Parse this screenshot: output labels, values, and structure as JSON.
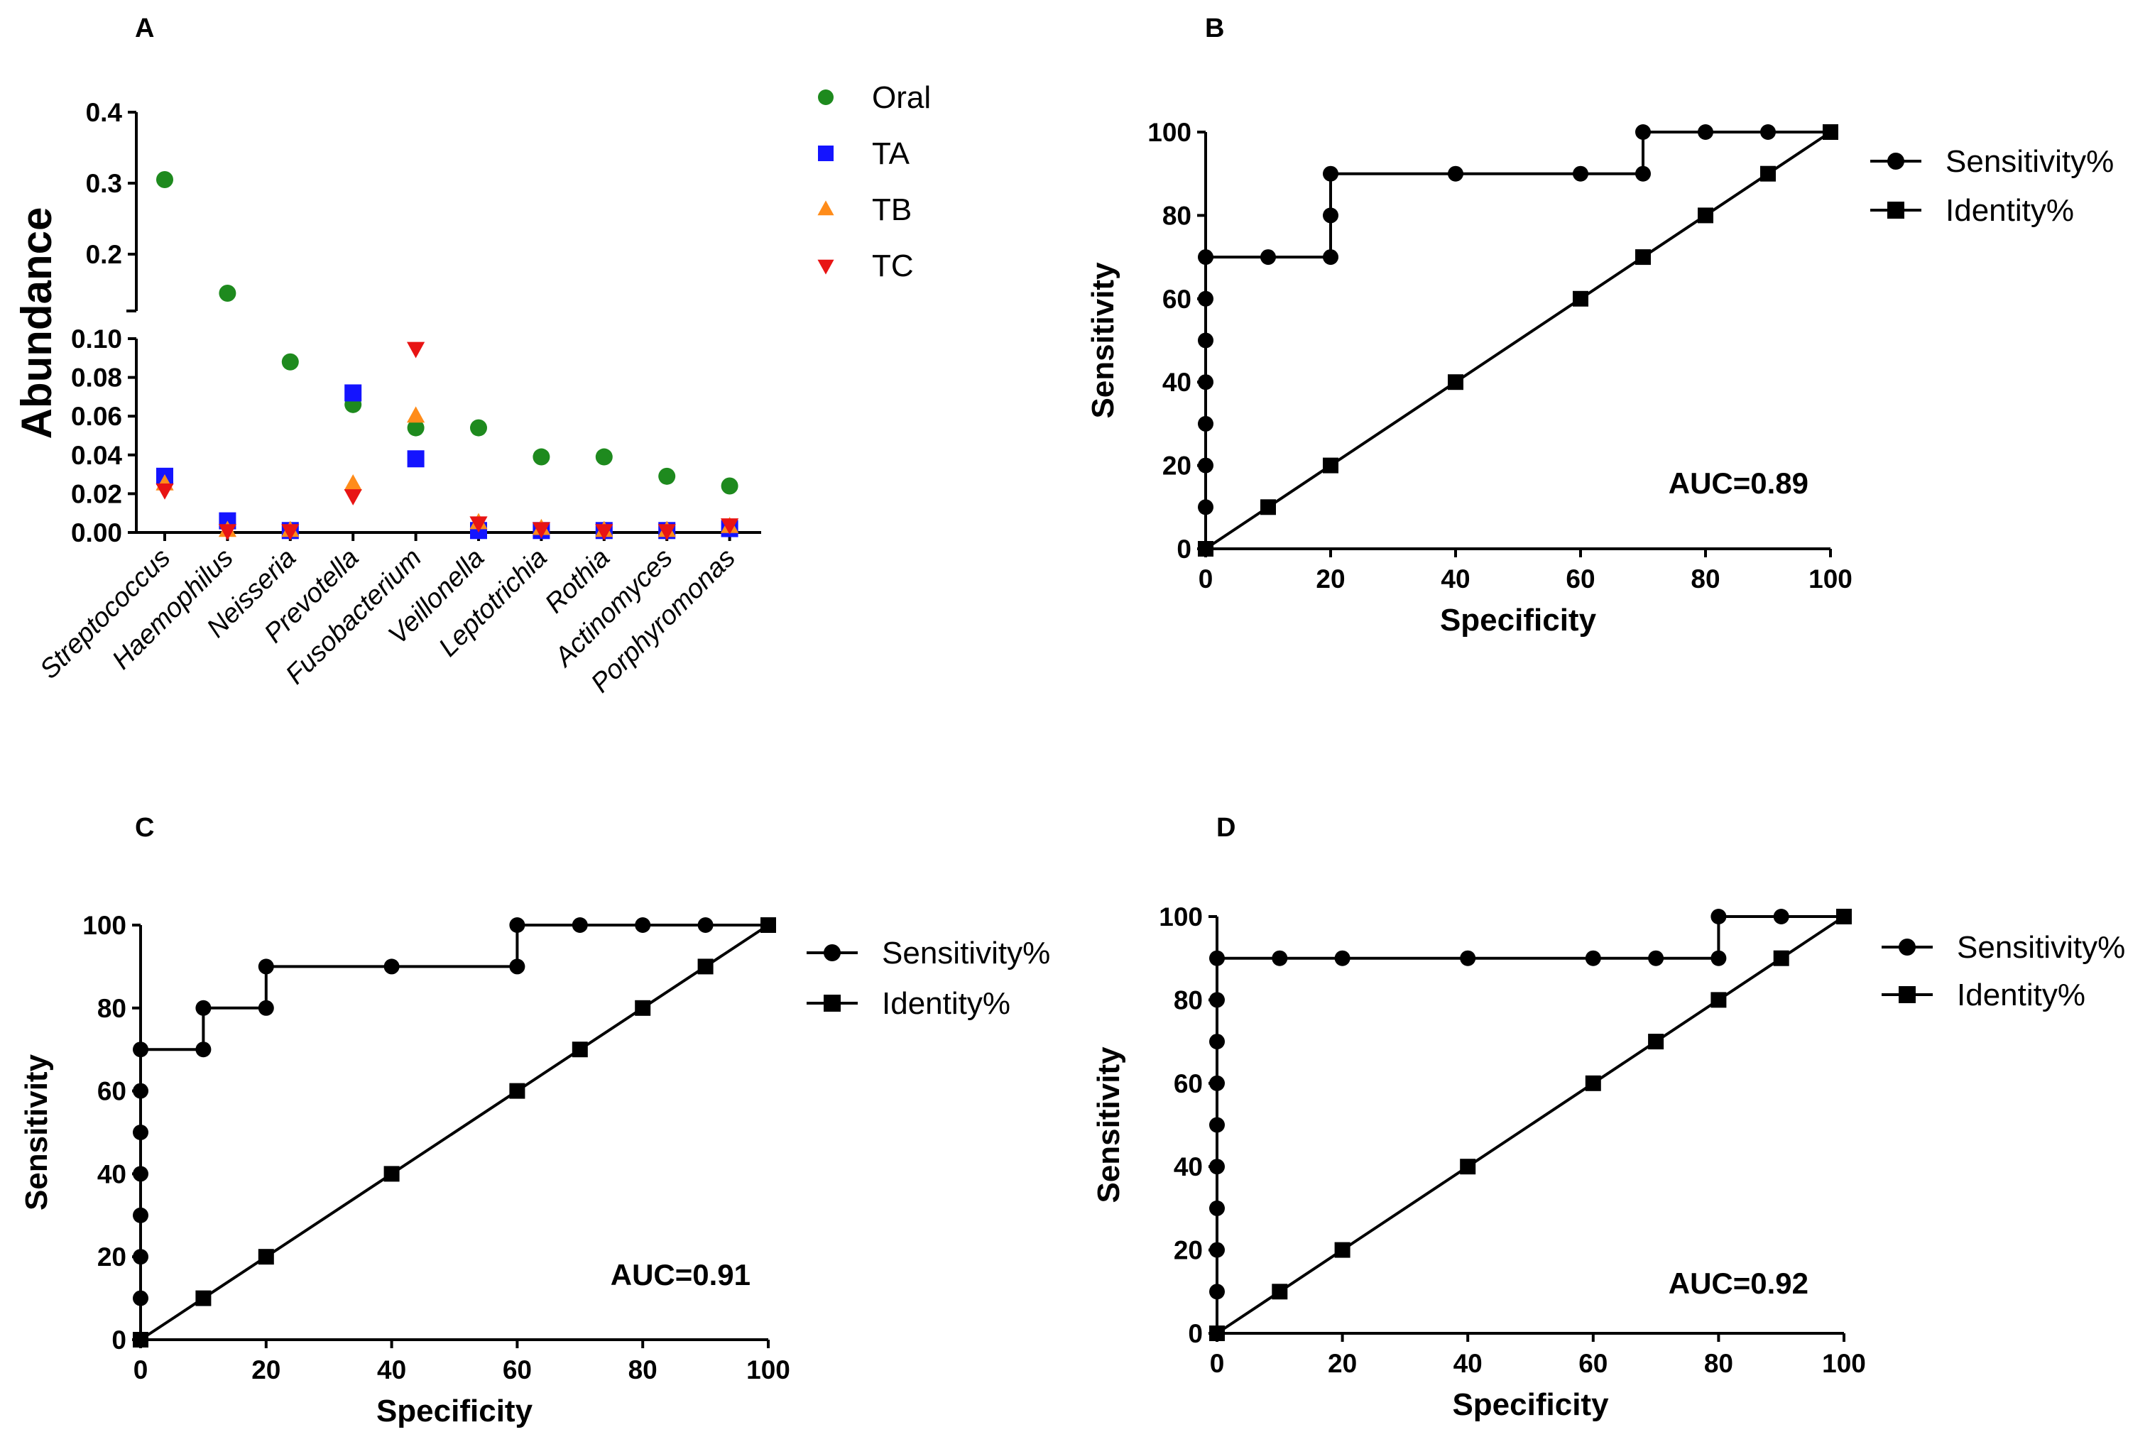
{
  "chart_data": [
    {
      "panel": "A",
      "type": "scatter",
      "ylabel": "Abundance",
      "categories": [
        "Streptococcus",
        "Haemophilus",
        "Neisseria",
        "Prevotella",
        "Fusobacterium",
        "Veillonella",
        "Leptotrichia",
        "Rothia",
        "Actinomyces",
        "Porphyromonas"
      ],
      "series": [
        {
          "name": "Oral",
          "color": "#1e8a1e",
          "marker": "circle",
          "values": [
            0.305,
            0.145,
            0.088,
            0.066,
            0.054,
            0.054,
            0.039,
            0.039,
            0.029,
            0.024
          ]
        },
        {
          "name": "TA",
          "color": "#1414ff",
          "marker": "square",
          "values": [
            0.029,
            0.006,
            0.001,
            0.072,
            0.038,
            0.001,
            0.001,
            0.001,
            0.001,
            0.002
          ]
        },
        {
          "name": "TB",
          "color": "#ff8c1a",
          "marker": "triangle-up",
          "values": [
            0.025,
            0.001,
            0.001,
            0.025,
            0.06,
            0.005,
            0.002,
            0.001,
            0.001,
            0.003
          ]
        },
        {
          "name": "TC",
          "color": "#e81414",
          "marker": "triangle-down",
          "values": [
            0.022,
            0.001,
            0.001,
            0.019,
            0.095,
            0.005,
            0.002,
            0.001,
            0.001,
            0.004
          ]
        }
      ],
      "y_segments": [
        {
          "range": [
            0,
            0.1
          ],
          "ticks": [
            "0.00",
            "0.02",
            "0.04",
            "0.06",
            "0.08",
            "0.10"
          ]
        },
        {
          "range": [
            0.12,
            0.4
          ],
          "ticks": [
            "0.2",
            "0.3",
            "0.4"
          ]
        }
      ]
    },
    {
      "panel": "B",
      "type": "line",
      "xlabel": "Specificity",
      "ylabel": "Sensitivity",
      "xlim": [
        0,
        100
      ],
      "ylim": [
        0,
        100
      ],
      "xticks": [
        "0",
        "20",
        "40",
        "60",
        "80",
        "100"
      ],
      "yticks": [
        "0",
        "20",
        "40",
        "60",
        "80",
        "100"
      ],
      "annotation": "AUC=0.89",
      "series": [
        {
          "name": "Sensitivity%",
          "marker": "circle",
          "x": [
            0,
            0,
            0,
            0,
            0,
            0,
            0,
            0,
            10,
            20,
            20,
            20,
            40,
            60,
            70,
            70,
            80,
            90,
            100
          ],
          "y": [
            0,
            10,
            20,
            30,
            40,
            50,
            60,
            70,
            70,
            70,
            80,
            90,
            90,
            90,
            90,
            100,
            100,
            100,
            100
          ]
        },
        {
          "name": "Identity%",
          "marker": "square",
          "x": [
            0,
            10,
            20,
            40,
            60,
            70,
            80,
            90,
            100
          ],
          "y": [
            0,
            10,
            20,
            40,
            60,
            70,
            80,
            90,
            100
          ]
        }
      ]
    },
    {
      "panel": "C",
      "type": "line",
      "xlabel": "Specificity",
      "ylabel": "Sensitivity",
      "xlim": [
        0,
        100
      ],
      "ylim": [
        0,
        100
      ],
      "xticks": [
        "0",
        "20",
        "40",
        "60",
        "80",
        "100"
      ],
      "yticks": [
        "0",
        "20",
        "40",
        "60",
        "80",
        "100"
      ],
      "annotation": "AUC=0.91",
      "series": [
        {
          "name": "Sensitivity%",
          "marker": "circle",
          "x": [
            0,
            0,
            0,
            0,
            0,
            0,
            0,
            0,
            10,
            10,
            20,
            20,
            40,
            60,
            60,
            70,
            80,
            90,
            100
          ],
          "y": [
            0,
            10,
            20,
            30,
            40,
            50,
            60,
            70,
            70,
            80,
            80,
            90,
            90,
            90,
            100,
            100,
            100,
            100,
            100
          ]
        },
        {
          "name": "Identity%",
          "marker": "square",
          "x": [
            0,
            10,
            20,
            40,
            60,
            70,
            80,
            90,
            100
          ],
          "y": [
            0,
            10,
            20,
            40,
            60,
            70,
            80,
            90,
            100
          ]
        }
      ]
    },
    {
      "panel": "D",
      "type": "line",
      "xlabel": "Specificity",
      "ylabel": "Sensitivity",
      "xlim": [
        0,
        100
      ],
      "ylim": [
        0,
        100
      ],
      "xticks": [
        "0",
        "20",
        "40",
        "60",
        "80",
        "100"
      ],
      "yticks": [
        "0",
        "20",
        "40",
        "60",
        "80",
        "100"
      ],
      "annotation": "AUC=0.92",
      "series": [
        {
          "name": "Sensitivity%",
          "marker": "circle",
          "x": [
            0,
            0,
            0,
            0,
            0,
            0,
            0,
            0,
            0,
            0,
            10,
            20,
            40,
            60,
            70,
            80,
            80,
            90,
            100
          ],
          "y": [
            0,
            10,
            20,
            30,
            40,
            50,
            60,
            70,
            80,
            90,
            90,
            90,
            90,
            90,
            90,
            90,
            100,
            100,
            100
          ]
        },
        {
          "name": "Identity%",
          "marker": "square",
          "x": [
            0,
            10,
            20,
            40,
            60,
            70,
            80,
            90,
            100
          ],
          "y": [
            0,
            10,
            20,
            40,
            60,
            70,
            80,
            90,
            100
          ]
        }
      ]
    }
  ]
}
